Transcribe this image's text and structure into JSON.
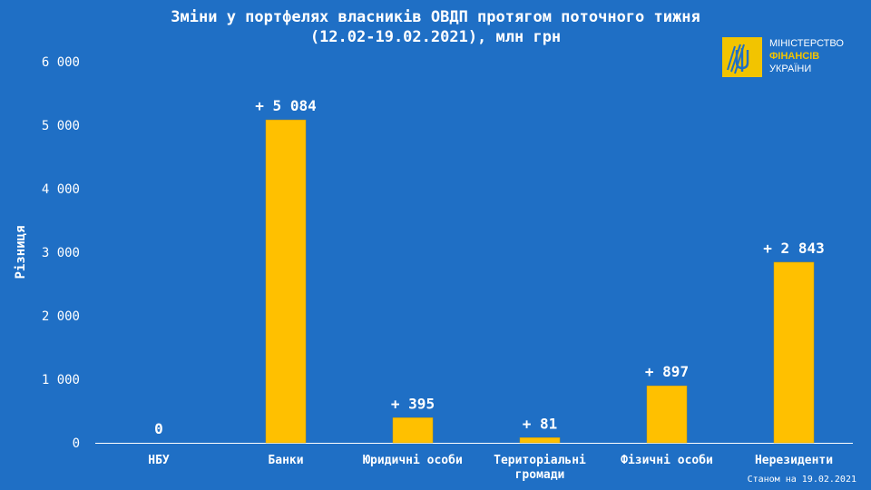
{
  "title_line1": "Зміни у портфелях власників ОВДП протягом поточного тижня",
  "title_line2": "(12.02-19.02.2021), млн грн",
  "logo": {
    "line1": "МІНІСТЕРСТВО",
    "line2": "ФІНАНСІВ",
    "line3": "УКРАЇНИ",
    "icon": "trident-emblem-icon"
  },
  "note": "Станом на 19.02.2021",
  "colors": {
    "background": "#1f6fc5",
    "bar": "#ffc000",
    "axis": "#ffffff",
    "accent": "#f2c400"
  },
  "chart_data": {
    "type": "bar",
    "title": "Зміни у портфелях власників ОВДП протягом поточного тижня (12.02-19.02.2021), млн грн",
    "ylabel": "Різниця",
    "xlabel": "",
    "ylim": [
      0,
      6000
    ],
    "yticks": [
      0,
      1000,
      2000,
      3000,
      4000,
      5000,
      6000
    ],
    "ytick_labels": [
      "0",
      "1 000",
      "2 000",
      "3 000",
      "4 000",
      "5 000",
      "6 000"
    ],
    "categories": [
      "НБУ",
      "Банки",
      "Юридичні особи",
      "Територіальні громади",
      "Фізичні особи",
      "Нерезиденти"
    ],
    "category_lines": [
      [
        "НБУ"
      ],
      [
        "Банки"
      ],
      [
        "Юридичні особи"
      ],
      [
        "Територіальні",
        "громади"
      ],
      [
        "Фізичні особи"
      ],
      [
        "Нерезиденти"
      ]
    ],
    "values": [
      0,
      5084,
      395,
      81,
      897,
      2843
    ],
    "data_labels": [
      "0",
      "+ 5 084",
      "+ 395",
      "+ 81",
      "+ 897",
      "+ 2 843"
    ],
    "grid": false,
    "legend": "none"
  }
}
